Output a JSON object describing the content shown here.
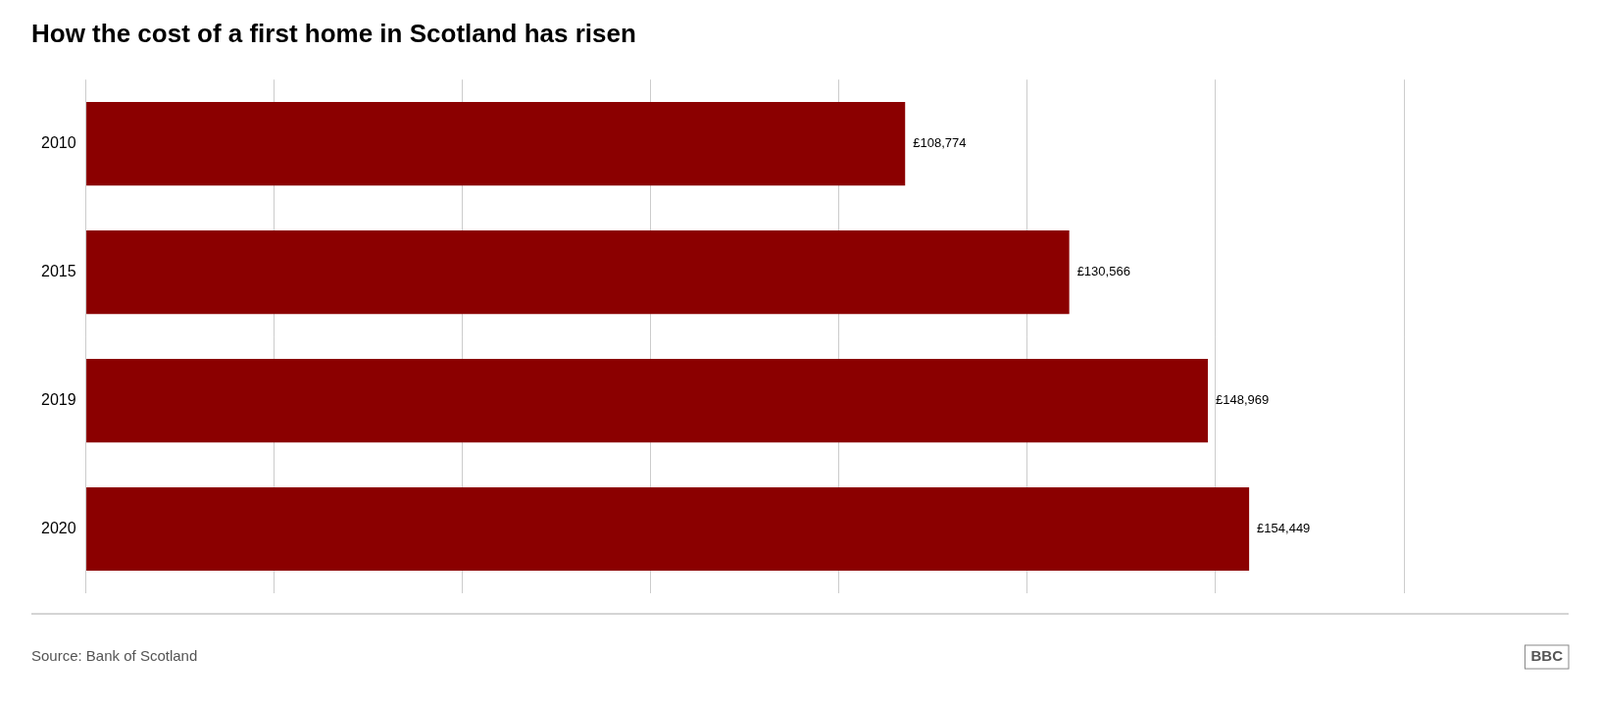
{
  "chart_data": {
    "type": "bar",
    "orientation": "horizontal",
    "title": "How the cost of a first home in Scotland has risen",
    "categories": [
      "2010",
      "2015",
      "2019",
      "2020"
    ],
    "values": [
      108774,
      130566,
      148969,
      154449
    ],
    "value_labels": [
      "£108,774",
      "£130,566",
      "£148,969",
      "£154,449"
    ],
    "data_labels": true,
    "color": "#8B0000",
    "xlim": [
      0,
      175000
    ],
    "xticks": [
      0,
      25000,
      50000,
      75000,
      100000,
      125000,
      150000,
      175000
    ],
    "grid": true,
    "tick_labels": "y",
    "annotations": [
      "Source: Bank of Scotland",
      "BBC"
    ]
  }
}
